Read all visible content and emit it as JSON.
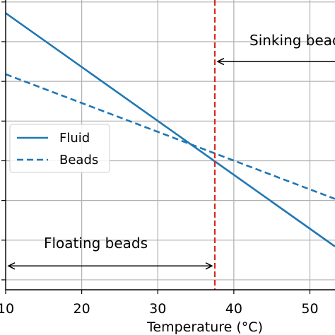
{
  "chart_data": {
    "type": "line",
    "title": "",
    "xlabel": "Temperature (°C)",
    "ylabel": "",
    "xlim": [
      10,
      53.3
    ],
    "ylim": [
      0.75,
      8.05
    ],
    "x_ticks": [
      10,
      20,
      30,
      40,
      50
    ],
    "x_tick_labels": [
      "10",
      "20",
      "30",
      "40",
      "50"
    ],
    "y_tick_count": 8,
    "grid": true,
    "legend": {
      "position": "center-left",
      "entries": [
        "Fluid",
        "Beads"
      ]
    },
    "series": [
      {
        "name": "Fluid",
        "style": "solid",
        "color": "#1f77b4",
        "x": [
          10,
          53.3
        ],
        "y": [
          7.72,
          1.84
        ]
      },
      {
        "name": "Beads",
        "style": "dashed",
        "color": "#1f77b4",
        "x": [
          10,
          53.3
        ],
        "y": [
          6.18,
          3.04
        ]
      }
    ],
    "vline": {
      "x": 37.5,
      "color": "#d62728",
      "style": "dashed"
    },
    "annotations": [
      {
        "id": "sinking",
        "text": "Sinking beads",
        "x": 42,
        "y": 7.1
      },
      {
        "id": "floating",
        "text": "Floating beads",
        "x": 15,
        "y": 1.85
      }
    ],
    "arrows": [
      {
        "id": "sinking-arrow",
        "from_x": 53.3,
        "to_x": 37.5,
        "y": 6.5
      },
      {
        "id": "floating-arrow",
        "from_x": 10,
        "to_x": 37.5,
        "y": 1.35
      }
    ]
  }
}
